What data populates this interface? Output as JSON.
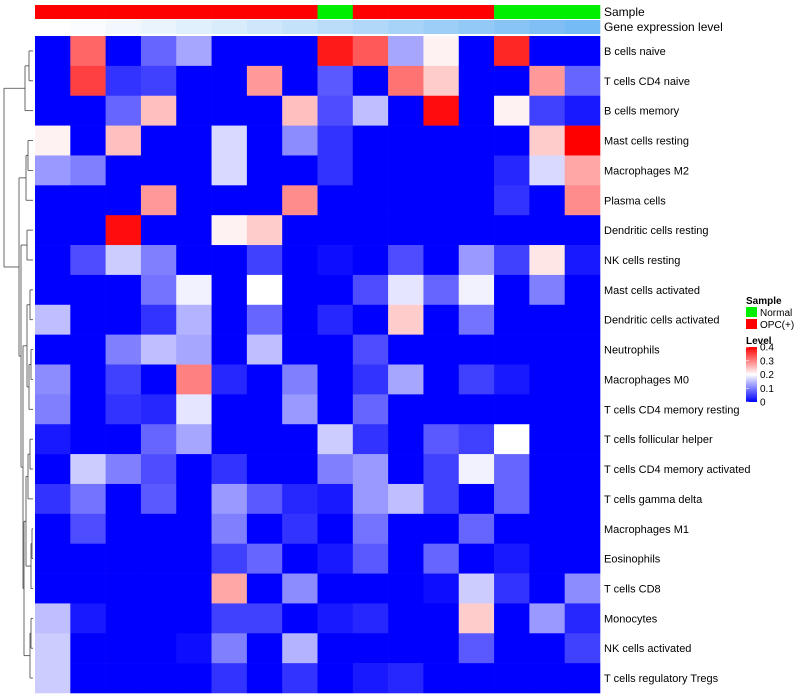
{
  "chart_data": {
    "type": "heatmap",
    "title": "",
    "annotations": [
      {
        "name": "Sample",
        "colors": [
          "#ff0000",
          "#ff0000",
          "#ff0000",
          "#ff0000",
          "#ff0000",
          "#ff0000",
          "#ff0000",
          "#ff0000",
          "#00ee00",
          "#ff0000",
          "#ff0000",
          "#ff0000",
          "#ff0000",
          "#00ee00",
          "#00ee00",
          "#00ee00"
        ]
      },
      {
        "name": "Gene expression level",
        "colors": [
          "#ffffff",
          "#fafcff",
          "#f2f8fe",
          "#eaf4fd",
          "#e1f0fd",
          "#d8ecfc",
          "#cfe7fb",
          "#c5e2fb",
          "#bbddfa",
          "#b1d8f9",
          "#a7d3f8",
          "#9dcef7",
          "#93c9f6",
          "#89c4f6",
          "#7fbff5",
          "#75bbf5"
        ]
      }
    ],
    "rows": [
      "B cells naive",
      "T cells CD4 naive",
      "B cells memory",
      "Mast cells resting",
      "Macrophages M2",
      "Plasma cells",
      "Dendritic cells resting",
      "NK cells resting",
      "Mast cells activated",
      "Dendritic cells activated",
      "Neutrophils",
      "Macrophages M0",
      "T cells CD4 memory resting",
      "T cells follicular helper",
      "T cells CD4 memory activated",
      "T cells gamma delta",
      "Macrophages M1",
      "Eosinophils",
      "T cells CD8",
      "Monocytes",
      "NK cells activated",
      "T cells regulatory  Tregs"
    ],
    "values": [
      [
        0,
        0.32,
        0,
        0.08,
        0.13,
        0,
        0,
        0,
        0.38,
        0.33,
        0.13,
        0.21,
        0,
        0.37,
        0,
        0
      ],
      [
        0,
        0.35,
        0.04,
        0.05,
        0,
        0,
        0.28,
        0,
        0.07,
        0,
        0.31,
        0.24,
        0,
        0,
        0.28,
        0.08
      ],
      [
        0,
        0,
        0.08,
        0.25,
        0,
        0,
        0,
        0.25,
        0.06,
        0.15,
        0,
        0.39,
        0,
        0.21,
        0.05,
        0.02
      ],
      [
        0.21,
        0,
        0.25,
        0,
        0,
        0.17,
        0,
        0.11,
        0.04,
        0,
        0,
        0,
        0,
        0,
        0.24,
        0.4
      ],
      [
        0.12,
        0.1,
        0,
        0,
        0,
        0.17,
        0,
        0,
        0.04,
        0,
        0,
        0,
        0,
        0.03,
        0.17,
        0.27
      ],
      [
        0,
        0,
        0,
        0.28,
        0,
        0,
        0,
        0.29,
        0,
        0,
        0,
        0,
        0,
        0.04,
        0,
        0.29
      ],
      [
        0,
        0,
        0.39,
        0,
        0,
        0.21,
        0.24,
        0,
        0,
        0,
        0,
        0,
        0,
        0,
        0,
        0
      ],
      [
        0,
        0.06,
        0.16,
        0.1,
        0,
        0,
        0.05,
        0,
        0.01,
        0,
        0.06,
        0,
        0.12,
        0.05,
        0.22,
        0.02
      ],
      [
        0,
        0,
        0,
        0.09,
        0.19,
        0,
        0.2,
        0,
        0,
        0.06,
        0.18,
        0.08,
        0.19,
        0,
        0.1,
        0
      ],
      [
        0.15,
        0,
        0,
        0.04,
        0.14,
        0,
        0.08,
        0,
        0.03,
        0,
        0.24,
        0,
        0.09,
        0,
        0,
        0
      ],
      [
        0,
        0,
        0.1,
        0.15,
        0.13,
        0,
        0.15,
        0,
        0,
        0.06,
        0,
        0,
        0,
        0,
        0,
        0
      ],
      [
        0.11,
        0,
        0.05,
        0,
        0.3,
        0.03,
        0,
        0.1,
        0,
        0.04,
        0.13,
        0,
        0.05,
        0.02,
        0,
        0
      ],
      [
        0.1,
        0,
        0.04,
        0.03,
        0.18,
        0,
        0,
        0.12,
        0,
        0.08,
        0,
        0,
        0,
        0,
        0,
        0
      ],
      [
        0.02,
        0,
        0,
        0.08,
        0.13,
        0,
        0,
        0,
        0.16,
        0.04,
        0,
        0.07,
        0.05,
        0.2,
        0,
        0
      ],
      [
        0,
        0.16,
        0.1,
        0.06,
        0,
        0.04,
        0,
        0,
        0.1,
        0.12,
        0,
        0.05,
        0.19,
        0.08,
        0,
        0
      ],
      [
        0.04,
        0.09,
        0,
        0.07,
        0,
        0.12,
        0.07,
        0.03,
        0.02,
        0.12,
        0.15,
        0.05,
        0,
        0.08,
        0,
        0
      ],
      [
        0,
        0.06,
        0,
        0,
        0,
        0.1,
        0,
        0.04,
        0,
        0.09,
        0,
        0,
        0.08,
        0,
        0,
        0
      ],
      [
        0,
        0,
        0,
        0,
        0,
        0.05,
        0.08,
        0,
        0.02,
        0.07,
        0,
        0.08,
        0,
        0.02,
        0,
        0
      ],
      [
        0,
        0,
        0,
        0,
        0,
        0.27,
        0,
        0.11,
        0,
        0,
        0,
        0.01,
        0.16,
        0.04,
        0,
        0.11
      ],
      [
        0.15,
        0.02,
        0,
        0,
        0,
        0.05,
        0.05,
        0,
        0.02,
        0.03,
        0,
        0,
        0.24,
        0,
        0.12,
        0.03
      ],
      [
        0.16,
        0,
        0,
        0,
        0.01,
        0.1,
        0,
        0.14,
        0,
        0,
        0,
        0,
        0.07,
        0,
        0,
        0.05
      ],
      [
        0.16,
        0,
        0,
        0,
        0,
        0.04,
        0,
        0.04,
        0,
        0.02,
        0.03,
        0,
        0,
        0,
        0,
        0
      ]
    ],
    "legend": {
      "sample": {
        "title": "Sample",
        "entries": [
          {
            "label": "Normal",
            "color": "#00ee00"
          },
          {
            "label": "OPC(+)",
            "color": "#ff0000"
          }
        ]
      },
      "level": {
        "title": "Level",
        "ticks": [
          {
            "label": "0.4",
            "value": 0.4
          },
          {
            "label": "0.3",
            "value": 0.3
          },
          {
            "label": "0.2",
            "value": 0.2
          },
          {
            "label": "0.1",
            "value": 0.1
          },
          {
            "label": "0",
            "value": 0
          }
        ],
        "range": [
          0,
          0.4
        ],
        "placement": "right"
      }
    },
    "colors": {
      "low": "#0000ff",
      "mid": "#ffffff",
      "high": "#ff0000"
    }
  }
}
